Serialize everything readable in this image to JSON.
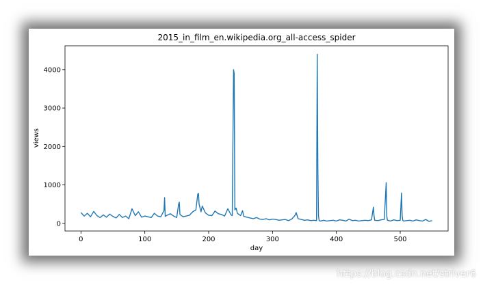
{
  "watermark": "https://blog.csdn.net/striver6",
  "chart_data": {
    "type": "line",
    "title": "2015_in_film_en.wikipedia.org_all-access_spider",
    "xlabel": "day",
    "ylabel": "views",
    "xlim": [
      -25,
      575
    ],
    "ylim": [
      -200,
      4620
    ],
    "xticks": [
      0,
      100,
      200,
      300,
      400,
      500
    ],
    "yticks": [
      0,
      1000,
      2000,
      3000,
      4000
    ],
    "line_color": "#1f77b4",
    "grid": false,
    "series": [
      {
        "x": [
          0,
          5,
          10,
          15,
          20,
          25,
          30,
          35,
          40,
          45,
          50,
          55,
          60,
          65,
          70,
          75,
          80,
          85,
          90,
          95,
          100,
          105,
          110,
          115,
          120,
          125,
          130,
          131,
          132,
          135,
          140,
          145,
          150,
          153,
          154,
          155,
          160,
          165,
          170,
          175,
          180,
          183,
          184,
          185,
          188,
          190,
          195,
          200,
          205,
          210,
          215,
          220,
          225,
          230,
          235,
          237,
          239,
          240,
          241,
          243,
          245,
          250,
          253,
          255,
          260,
          265,
          270,
          275,
          280,
          285,
          290,
          295,
          300,
          305,
          310,
          315,
          320,
          325,
          330,
          335,
          337,
          340,
          345,
          350,
          355,
          360,
          365,
          369,
          370,
          371,
          372,
          373,
          375,
          380,
          385,
          390,
          395,
          400,
          405,
          410,
          415,
          420,
          425,
          430,
          435,
          440,
          445,
          450,
          455,
          458,
          459,
          460,
          465,
          470,
          475,
          478,
          479,
          480,
          485,
          490,
          495,
          500,
          502,
          503,
          504,
          505,
          510,
          515,
          520,
          525,
          530,
          535,
          540,
          545,
          550
        ],
        "values": [
          280,
          190,
          260,
          170,
          310,
          200,
          150,
          220,
          160,
          240,
          180,
          140,
          230,
          150,
          190,
          120,
          380,
          200,
          300,
          160,
          190,
          170,
          150,
          260,
          190,
          170,
          330,
          670,
          180,
          210,
          250,
          190,
          150,
          500,
          550,
          230,
          170,
          190,
          210,
          300,
          350,
          760,
          780,
          500,
          300,
          450,
          270,
          210,
          200,
          320,
          250,
          230,
          190,
          380,
          220,
          200,
          4000,
          3900,
          350,
          400,
          260,
          200,
          330,
          180,
          160,
          140,
          120,
          150,
          110,
          100,
          120,
          90,
          110,
          100,
          80,
          90,
          100,
          70,
          110,
          200,
          280,
          120,
          100,
          80,
          90,
          70,
          80,
          70,
          4400,
          1500,
          200,
          70,
          60,
          80,
          60,
          70,
          80,
          60,
          90,
          80,
          60,
          110,
          70,
          80,
          60,
          70,
          80,
          70,
          90,
          420,
          200,
          80,
          70,
          90,
          100,
          1060,
          180,
          80,
          60,
          90,
          70,
          80,
          790,
          200,
          80,
          60,
          70,
          80,
          60,
          90,
          70,
          60,
          100,
          50,
          70
        ]
      }
    ]
  }
}
